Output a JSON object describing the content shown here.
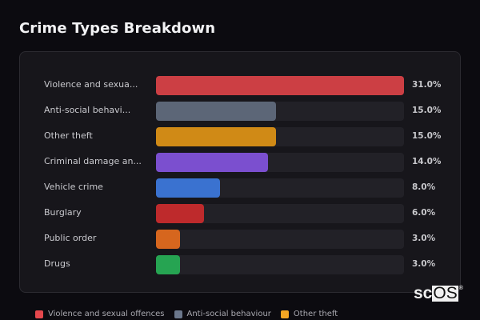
{
  "title": "Crime Types Breakdown",
  "chart_data": {
    "type": "bar",
    "orientation": "horizontal",
    "title": "Crime Types Breakdown",
    "xlabel": "",
    "ylabel": "",
    "xlim": [
      0,
      31
    ],
    "grid": false,
    "legend_position": "bottom",
    "categories": [
      "Violence and sexual offences",
      "Anti-social behaviour",
      "Other theft",
      "Criminal damage and arson",
      "Vehicle crime",
      "Burglary",
      "Public order",
      "Drugs"
    ],
    "display_labels": [
      "Violence and sexua...",
      "Anti-social behavi...",
      "Other theft",
      "Criminal damage an...",
      "Vehicle crime",
      "Burglary",
      "Public order",
      "Drugs"
    ],
    "values": [
      31.0,
      15.0,
      15.0,
      14.0,
      8.0,
      6.0,
      3.0,
      3.0
    ],
    "value_labels": [
      "31.0%",
      "15.0%",
      "15.0%",
      "14.0%",
      "8.0%",
      "6.0%",
      "3.0%",
      "3.0%"
    ],
    "colors": [
      "#cc3f44",
      "#5c6677",
      "#d08a16",
      "#7b4fcf",
      "#3a72d0",
      "#be2a2c",
      "#d6661e",
      "#26a452"
    ]
  },
  "legend": [
    {
      "label": "Violence and sexual offences",
      "color": "#e5484d"
    },
    {
      "label": "Anti-social behaviour",
      "color": "#6b778c"
    },
    {
      "label": "Other theft",
      "color": "#f5a623"
    }
  ],
  "watermark": {
    "prefix": "sc",
    "boxed": "OS",
    "mark": "®"
  }
}
